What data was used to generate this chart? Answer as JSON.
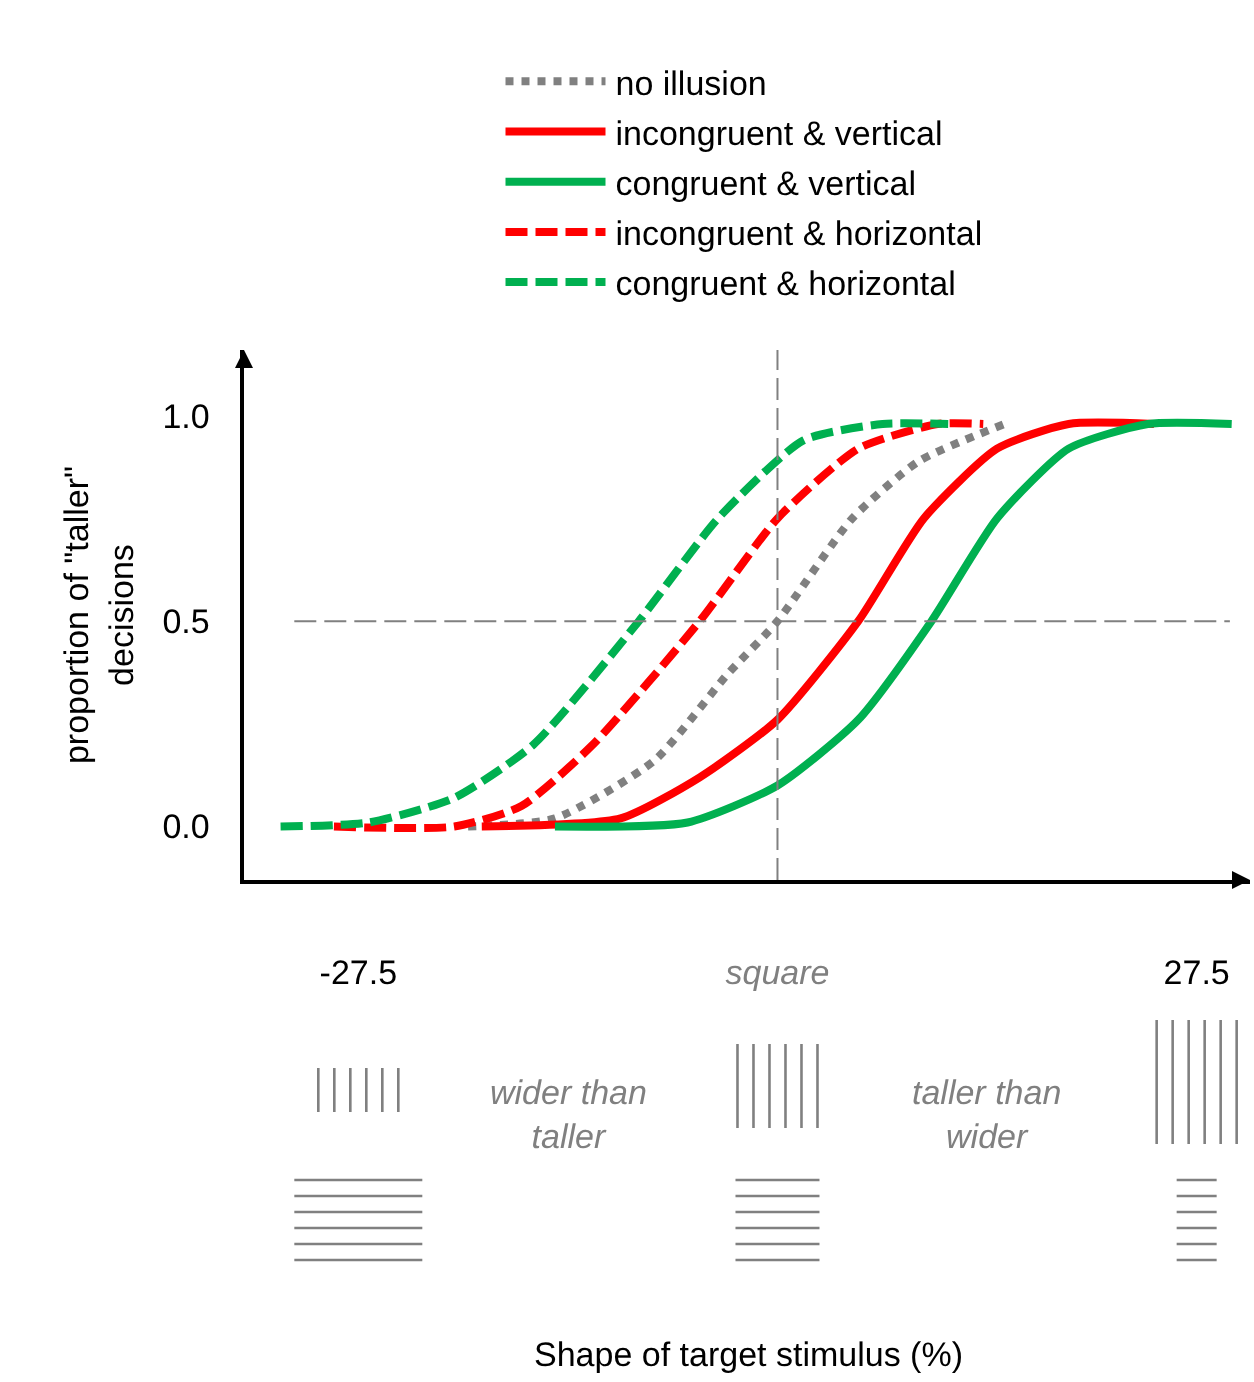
{
  "chart_data": {
    "type": "line",
    "ylabel": "proportion of \"taller\" decisions",
    "xlim": [
      -35,
      31
    ],
    "xticks": [
      -27.5,
      {
        "value": 0,
        "label": "square"
      },
      27.5
    ],
    "ylim": [
      -0.13,
      1.16
    ],
    "yticks": [
      {
        "value": 0,
        "label": "0.0"
      },
      {
        "value": 0.5,
        "label": "0.5"
      },
      {
        "value": 1,
        "label": "1.0"
      }
    ],
    "grid": false,
    "legend": "top",
    "marker": "none",
    "ref_lines": [
      {
        "axis": "x",
        "value": 0,
        "line_style": "dashed",
        "color": "#808080"
      },
      {
        "axis": "y",
        "value": 0.5,
        "line_style": "dashed",
        "color": "#808080"
      }
    ],
    "annotations": [
      "wider than taller",
      "taller than wider",
      "Shape of target stimulus (%)"
    ],
    "series": [
      {
        "name": "no illusion",
        "color": "#808080",
        "line_style": "dotted",
        "x": [
          -20.3,
          -14.6,
          -8.1,
          -3.3,
          0,
          4.9,
          9.3,
          14.9
        ],
        "values": [
          0,
          0.02,
          0.16,
          0.37,
          0.5,
          0.75,
          0.89,
          0.98
        ]
      },
      {
        "name": "incongruent & vertical",
        "color": "#ff0000",
        "line_style": "solid",
        "x": [
          -19.4,
          -10.3,
          -5.1,
          0,
          5.3,
          9.6,
          14.4,
          19.1,
          24.7
        ],
        "values": [
          0,
          0.02,
          0.12,
          0.26,
          0.5,
          0.75,
          0.92,
          0.98,
          0.98
        ]
      },
      {
        "name": "congruent & vertical",
        "color": "#00b050",
        "line_style": "solid",
        "x": [
          -14.6,
          -5.9,
          0,
          5.3,
          10.1,
          14.4,
          19.1,
          24.3,
          29.8
        ],
        "values": [
          0,
          0.01,
          0.1,
          0.26,
          0.5,
          0.75,
          0.92,
          0.98,
          0.98
        ]
      },
      {
        "name": "incongruent & horizontal",
        "color": "#ff0000",
        "line_style": "dashed",
        "x": [
          -29.1,
          -21.2,
          -16.8,
          -12.1,
          -5.1,
          0,
          5.3,
          10.5,
          13.5
        ],
        "values": [
          0,
          0,
          0.05,
          0.2,
          0.5,
          0.75,
          0.92,
          0.98,
          0.98
        ]
      },
      {
        "name": "congruent & horizontal",
        "color": "#00b050",
        "line_style": "dashed",
        "x": [
          -32.6,
          -26.8,
          -21.2,
          -16,
          -9.1,
          -3.9,
          1.7,
          6.9,
          11.2
        ],
        "values": [
          0,
          0.01,
          0.07,
          0.2,
          0.5,
          0.75,
          0.94,
          0.98,
          0.98
        ]
      }
    ]
  }
}
